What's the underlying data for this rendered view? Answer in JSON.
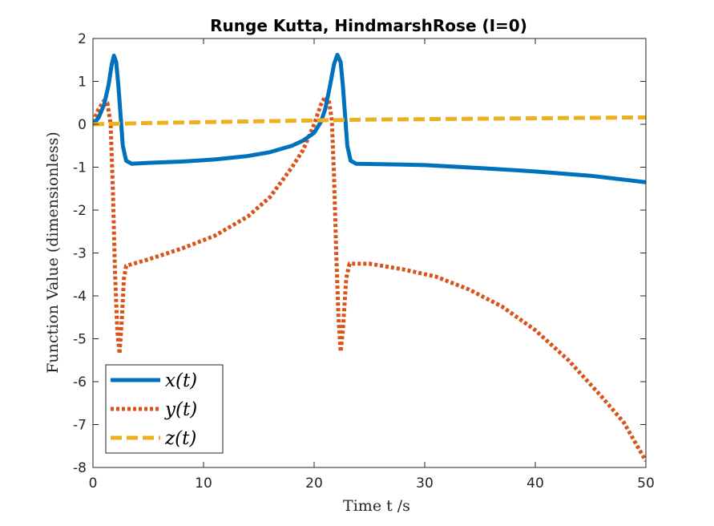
{
  "chart_data": {
    "type": "line",
    "title": "Runge Kutta, HindmarshRose (I=0)",
    "xlabel": "Time t /s",
    "ylabel": "Function Value (dimensionless)",
    "xlim": [
      0,
      50
    ],
    "ylim": [
      -8,
      2
    ],
    "xticks": [
      "0",
      "10",
      "20",
      "30",
      "40",
      "50"
    ],
    "yticks": [
      "2",
      "1",
      "0",
      "-1",
      "-2",
      "-3",
      "-4",
      "-5",
      "-6",
      "-7",
      "-8"
    ],
    "grid": false,
    "legend_position": "bottom-left",
    "series": [
      {
        "name": "x(t)",
        "color": "#0072BD",
        "style": "solid",
        "points": [
          [
            0,
            0.0
          ],
          [
            0.5,
            0.15
          ],
          [
            1.0,
            0.45
          ],
          [
            1.4,
            0.9
          ],
          [
            1.7,
            1.4
          ],
          [
            1.9,
            1.6
          ],
          [
            2.1,
            1.45
          ],
          [
            2.3,
            0.9
          ],
          [
            2.5,
            0.2
          ],
          [
            2.7,
            -0.5
          ],
          [
            3.0,
            -0.85
          ],
          [
            3.5,
            -0.92
          ],
          [
            5,
            -0.9
          ],
          [
            8,
            -0.87
          ],
          [
            11,
            -0.82
          ],
          [
            14,
            -0.74
          ],
          [
            16,
            -0.65
          ],
          [
            18,
            -0.5
          ],
          [
            19,
            -0.38
          ],
          [
            20,
            -0.2
          ],
          [
            20.6,
            0.05
          ],
          [
            21.0,
            0.35
          ],
          [
            21.4,
            0.85
          ],
          [
            21.8,
            1.4
          ],
          [
            22.1,
            1.62
          ],
          [
            22.4,
            1.45
          ],
          [
            22.6,
            0.9
          ],
          [
            22.8,
            0.2
          ],
          [
            23.0,
            -0.5
          ],
          [
            23.3,
            -0.85
          ],
          [
            23.8,
            -0.92
          ],
          [
            26,
            -0.93
          ],
          [
            30,
            -0.95
          ],
          [
            35,
            -1.02
          ],
          [
            40,
            -1.1
          ],
          [
            45,
            -1.2
          ],
          [
            50,
            -1.35
          ]
        ]
      },
      {
        "name": "y(t)",
        "color": "#D95319",
        "style": "dotted",
        "points": [
          [
            0,
            0.05
          ],
          [
            0.5,
            0.35
          ],
          [
            1.0,
            0.55
          ],
          [
            1.3,
            0.5
          ],
          [
            1.6,
            0.0
          ],
          [
            1.8,
            -1.5
          ],
          [
            2.0,
            -3.5
          ],
          [
            2.2,
            -4.8
          ],
          [
            2.4,
            -5.35
          ],
          [
            2.6,
            -4.6
          ],
          [
            2.8,
            -3.6
          ],
          [
            3.0,
            -3.3
          ],
          [
            5,
            -3.15
          ],
          [
            8,
            -2.9
          ],
          [
            11,
            -2.6
          ],
          [
            14,
            -2.15
          ],
          [
            16,
            -1.7
          ],
          [
            18,
            -1.0
          ],
          [
            19,
            -0.6
          ],
          [
            20,
            0.0
          ],
          [
            20.6,
            0.45
          ],
          [
            21.0,
            0.65
          ],
          [
            21.3,
            0.6
          ],
          [
            21.6,
            0.1
          ],
          [
            21.8,
            -1.2
          ],
          [
            22.0,
            -3.0
          ],
          [
            22.2,
            -4.5
          ],
          [
            22.4,
            -5.3
          ],
          [
            22.6,
            -4.8
          ],
          [
            22.9,
            -3.6
          ],
          [
            23.2,
            -3.25
          ],
          [
            25,
            -3.25
          ],
          [
            28,
            -3.38
          ],
          [
            31,
            -3.55
          ],
          [
            34,
            -3.85
          ],
          [
            37,
            -4.25
          ],
          [
            40,
            -4.8
          ],
          [
            43,
            -5.5
          ],
          [
            46,
            -6.35
          ],
          [
            48,
            -6.95
          ],
          [
            50,
            -7.85
          ]
        ]
      },
      {
        "name": "z(t)",
        "color": "#EDB120",
        "style": "dashed",
        "points": [
          [
            0,
            0.0
          ],
          [
            5,
            0.03
          ],
          [
            10,
            0.05
          ],
          [
            15,
            0.07
          ],
          [
            20,
            0.09
          ],
          [
            25,
            0.11
          ],
          [
            30,
            0.12
          ],
          [
            35,
            0.13
          ],
          [
            40,
            0.14
          ],
          [
            45,
            0.15
          ],
          [
            50,
            0.16
          ]
        ]
      }
    ]
  }
}
